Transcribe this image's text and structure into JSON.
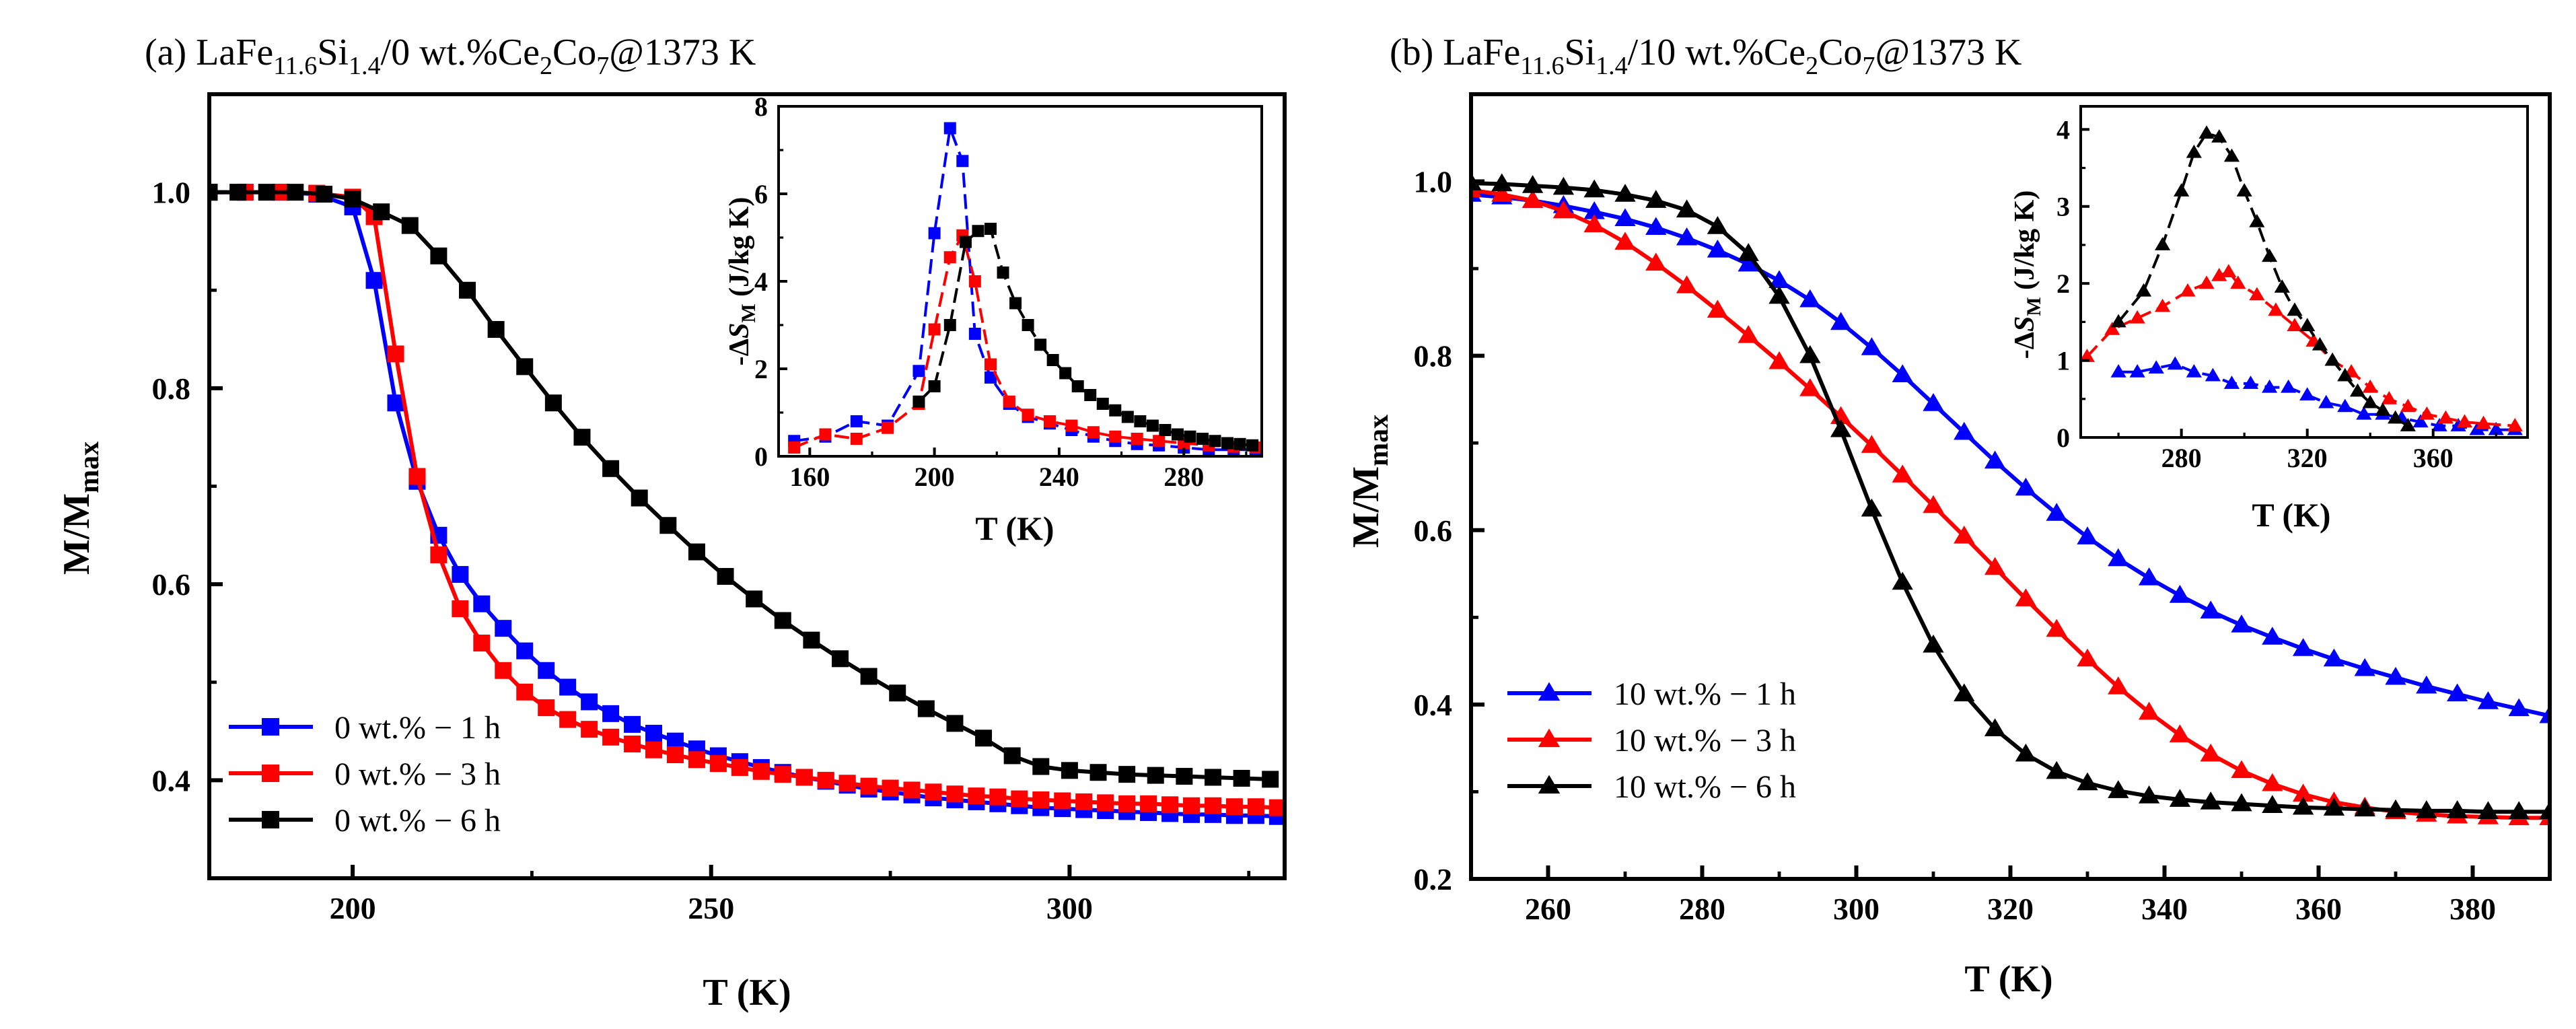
{
  "chart_data": [
    {
      "id": "a",
      "type": "line",
      "title": {
        "prefix": "(a) LaFe",
        "s1": "11.6",
        "m1": "Si",
        "s2": "1.4",
        "m2": "/0 wt.%Ce",
        "s3": "2",
        "m3": "Co",
        "s4": "7",
        "m4": "@1373 K"
      },
      "xlabel": "T (K)",
      "ylabel": {
        "main": "M/M",
        "sub": "max"
      },
      "xlim": [
        180,
        330
      ],
      "ylim": [
        0.3,
        1.1
      ],
      "xticks": [
        "200",
        "250",
        "300"
      ],
      "yticks": [
        "0.4",
        "0.6",
        "0.8",
        "1.0"
      ],
      "series": [
        {
          "name": "0 wt.% − 1 h",
          "color": "#0000ff",
          "marker": "square",
          "x": [
            180,
            185,
            190,
            195,
            200,
            203,
            206,
            209,
            212,
            215,
            218,
            221,
            224,
            227,
            230,
            233,
            236,
            239,
            242,
            245,
            248,
            251,
            254,
            257,
            260,
            263,
            266,
            269,
            272,
            275,
            278,
            281,
            284,
            287,
            290,
            293,
            296,
            299,
            302,
            305,
            308,
            311,
            314,
            317,
            320,
            323,
            326,
            329
          ],
          "y": [
            1.0,
            1.0,
            1.0,
            0.998,
            0.985,
            0.91,
            0.785,
            0.705,
            0.65,
            0.61,
            0.58,
            0.555,
            0.532,
            0.512,
            0.495,
            0.48,
            0.468,
            0.457,
            0.448,
            0.44,
            0.432,
            0.425,
            0.419,
            0.413,
            0.408,
            0.403,
            0.399,
            0.395,
            0.391,
            0.388,
            0.385,
            0.382,
            0.38,
            0.378,
            0.376,
            0.374,
            0.372,
            0.371,
            0.37,
            0.369,
            0.368,
            0.367,
            0.366,
            0.365,
            0.365,
            0.364,
            0.364,
            0.363
          ]
        },
        {
          "name": "0 wt.% − 3 h",
          "color": "#ff0000",
          "marker": "square",
          "x": [
            180,
            185,
            190,
            195,
            200,
            203,
            206,
            209,
            212,
            215,
            218,
            221,
            224,
            227,
            230,
            233,
            236,
            239,
            242,
            245,
            248,
            251,
            254,
            257,
            260,
            263,
            266,
            269,
            272,
            275,
            278,
            281,
            284,
            287,
            290,
            293,
            296,
            299,
            302,
            305,
            308,
            311,
            314,
            317,
            320,
            323,
            326,
            329
          ],
          "y": [
            1.0,
            1.0,
            1.0,
            0.999,
            0.995,
            0.975,
            0.835,
            0.71,
            0.63,
            0.575,
            0.54,
            0.512,
            0.49,
            0.474,
            0.462,
            0.452,
            0.444,
            0.437,
            0.431,
            0.426,
            0.421,
            0.417,
            0.413,
            0.409,
            0.406,
            0.403,
            0.4,
            0.397,
            0.394,
            0.392,
            0.39,
            0.388,
            0.386,
            0.384,
            0.383,
            0.381,
            0.38,
            0.379,
            0.378,
            0.377,
            0.376,
            0.376,
            0.375,
            0.374,
            0.374,
            0.373,
            0.373,
            0.372
          ]
        },
        {
          "name": "0 wt.% − 6 h",
          "color": "#000000",
          "marker": "square",
          "x": [
            180,
            184,
            188,
            192,
            196,
            200,
            204,
            208,
            212,
            216,
            220,
            224,
            228,
            232,
            236,
            240,
            244,
            248,
            252,
            256,
            260,
            264,
            268,
            272,
            276,
            280,
            284,
            288,
            292,
            296,
            300,
            304,
            308,
            312,
            316,
            320,
            324,
            328
          ],
          "y": [
            1.0,
            1.0,
            1.0,
            1.0,
            0.998,
            0.993,
            0.98,
            0.966,
            0.935,
            0.9,
            0.86,
            0.822,
            0.785,
            0.75,
            0.718,
            0.688,
            0.66,
            0.633,
            0.608,
            0.585,
            0.563,
            0.543,
            0.524,
            0.506,
            0.489,
            0.473,
            0.458,
            0.443,
            0.425,
            0.414,
            0.41,
            0.408,
            0.406,
            0.405,
            0.404,
            0.403,
            0.402,
            0.401
          ]
        }
      ],
      "legend_location": "lower-left",
      "inset": {
        "xlabel": "T (K)",
        "ylabel": {
          "pre": "-Δ",
          "ital": "S",
          "sub": "M",
          "post": " (J/kg K)"
        },
        "xlim": [
          150,
          305
        ],
        "ylim": [
          0,
          8
        ],
        "xticks": [
          "160",
          "200",
          "240",
          "280"
        ],
        "yticks": [
          "0",
          "2",
          "4",
          "6",
          "8"
        ],
        "series": [
          {
            "name": "1 h",
            "color": "#0000ff",
            "marker": "square",
            "x": [
              155,
              165,
              175,
              185,
              195,
              200,
              205,
              209,
              213,
              218,
              224,
              230,
              237,
              244,
              251,
              258,
              265,
              272,
              280,
              288,
              296,
              303
            ],
            "y": [
              0.35,
              0.45,
              0.8,
              0.7,
              1.95,
              5.1,
              7.5,
              6.75,
              2.8,
              1.8,
              1.2,
              0.9,
              0.75,
              0.6,
              0.45,
              0.35,
              0.28,
              0.25,
              0.2,
              0.15,
              0.15,
              0.15
            ]
          },
          {
            "name": "3 h",
            "color": "#ff0000",
            "marker": "square",
            "x": [
              155,
              165,
              175,
              185,
              195,
              200,
              205,
              209,
              213,
              218,
              224,
              230,
              237,
              244,
              251,
              258,
              265,
              272,
              280,
              288,
              296,
              303
            ],
            "y": [
              0.2,
              0.5,
              0.4,
              0.65,
              1.2,
              2.9,
              4.55,
              5.05,
              4.0,
              2.1,
              1.25,
              0.95,
              0.8,
              0.7,
              0.55,
              0.45,
              0.4,
              0.35,
              0.3,
              0.25,
              0.22,
              0.2
            ]
          },
          {
            "name": "6 h",
            "color": "#000000",
            "marker": "square",
            "x": [
              195,
              200,
              205,
              210,
              214,
              218,
              222,
              226,
              230,
              234,
              238,
              242,
              246,
              250,
              254,
              258,
              262,
              266,
              270,
              274,
              278,
              282,
              286,
              290,
              294,
              298,
              302
            ],
            "y": [
              1.25,
              1.6,
              3.0,
              4.9,
              5.15,
              5.2,
              4.2,
              3.5,
              3.0,
              2.55,
              2.2,
              1.9,
              1.6,
              1.4,
              1.2,
              1.05,
              0.9,
              0.8,
              0.7,
              0.6,
              0.5,
              0.45,
              0.4,
              0.35,
              0.3,
              0.28,
              0.25
            ]
          }
        ]
      }
    },
    {
      "id": "b",
      "type": "line",
      "title": {
        "prefix": "(b) LaFe",
        "s1": "11.6",
        "m1": "Si",
        "s2": "1.4",
        "m2": "/10 wt.%Ce",
        "s3": "2",
        "m3": "Co",
        "s4": "7",
        "m4": "@1373 K"
      },
      "xlabel": "T (K)",
      "ylabel": {
        "main": "M/M",
        "sub": "max"
      },
      "xlim": [
        250,
        390
      ],
      "ylim": [
        0.2,
        1.1
      ],
      "xticks": [
        "260",
        "280",
        "300",
        "320",
        "340",
        "360",
        "380"
      ],
      "yticks": [
        "0.2",
        "0.4",
        "0.6",
        "0.8",
        "1.0"
      ],
      "series": [
        {
          "name": "10 wt.% − 1 h",
          "color": "#0000ff",
          "marker": "triangle",
          "x": [
            250,
            254,
            258,
            262,
            266,
            270,
            274,
            278,
            282,
            286,
            290,
            294,
            298,
            302,
            306,
            310,
            314,
            318,
            322,
            326,
            330,
            334,
            338,
            342,
            346,
            350,
            354,
            358,
            362,
            366,
            370,
            374,
            378,
            382,
            386,
            390
          ],
          "y": [
            0.985,
            0.982,
            0.978,
            0.972,
            0.965,
            0.957,
            0.947,
            0.935,
            0.921,
            0.905,
            0.886,
            0.864,
            0.838,
            0.809,
            0.778,
            0.745,
            0.712,
            0.679,
            0.648,
            0.619,
            0.592,
            0.567,
            0.545,
            0.525,
            0.507,
            0.491,
            0.477,
            0.464,
            0.452,
            0.441,
            0.431,
            0.421,
            0.412,
            0.403,
            0.395,
            0.387
          ]
        },
        {
          "name": "10 wt.% − 3 h",
          "color": "#ff0000",
          "marker": "triangle",
          "x": [
            250,
            254,
            258,
            262,
            266,
            270,
            274,
            278,
            282,
            286,
            290,
            294,
            298,
            302,
            306,
            310,
            314,
            318,
            322,
            326,
            330,
            334,
            338,
            342,
            346,
            350,
            354,
            358,
            362,
            366,
            370,
            374,
            378,
            382,
            386,
            390
          ],
          "y": [
            0.99,
            0.985,
            0.978,
            0.966,
            0.95,
            0.93,
            0.906,
            0.88,
            0.852,
            0.823,
            0.793,
            0.762,
            0.73,
            0.697,
            0.663,
            0.628,
            0.593,
            0.557,
            0.521,
            0.486,
            0.452,
            0.42,
            0.391,
            0.365,
            0.343,
            0.324,
            0.309,
            0.297,
            0.288,
            0.282,
            0.277,
            0.274,
            0.272,
            0.271,
            0.27,
            0.27
          ]
        },
        {
          "name": "10 wt.% − 6 h",
          "color": "#000000",
          "marker": "triangle",
          "x": [
            250,
            254,
            258,
            262,
            266,
            270,
            274,
            278,
            282,
            286,
            290,
            294,
            298,
            302,
            306,
            310,
            314,
            318,
            322,
            326,
            330,
            334,
            338,
            342,
            346,
            350,
            354,
            358,
            362,
            366,
            370,
            374,
            378,
            382,
            386,
            390
          ],
          "y": [
            0.998,
            0.997,
            0.995,
            0.993,
            0.99,
            0.985,
            0.978,
            0.967,
            0.948,
            0.917,
            0.868,
            0.8,
            0.715,
            0.624,
            0.54,
            0.468,
            0.412,
            0.372,
            0.343,
            0.323,
            0.31,
            0.301,
            0.295,
            0.291,
            0.288,
            0.286,
            0.284,
            0.282,
            0.281,
            0.28,
            0.279,
            0.278,
            0.278,
            0.277,
            0.277,
            0.277
          ]
        }
      ],
      "legend_location": "lower-left",
      "inset": {
        "xlabel": "T (K)",
        "ylabel": {
          "pre": "-Δ",
          "ital": "S",
          "sub": "M",
          "post": " (J/kg K)"
        },
        "xlim": [
          248,
          390
        ],
        "ylim": [
          0,
          4.3
        ],
        "xticks": [
          "280",
          "320",
          "360"
        ],
        "yticks": [
          "0",
          "1",
          "2",
          "3",
          "4"
        ],
        "series": [
          {
            "name": "1 h",
            "color": "#0000ff",
            "marker": "triangle",
            "x": [
              260,
              266,
              272,
              278,
              284,
              290,
              296,
              302,
              308,
              314,
              320,
              326,
              332,
              338,
              344,
              350,
              356,
              362,
              368,
              374,
              380,
              386
            ],
            "y": [
              0.85,
              0.85,
              0.9,
              0.95,
              0.85,
              0.8,
              0.7,
              0.7,
              0.65,
              0.65,
              0.55,
              0.45,
              0.4,
              0.3,
              0.3,
              0.25,
              0.2,
              0.15,
              0.15,
              0.1,
              0.1,
              0.1
            ]
          },
          {
            "name": "3 h",
            "color": "#ff0000",
            "marker": "triangle",
            "x": [
              250,
              258,
              266,
              274,
              282,
              288,
              292,
              295,
              298,
              304,
              310,
              316,
              322,
              328,
              334,
              340,
              346,
              352,
              358,
              364,
              370,
              376,
              386
            ],
            "y": [
              1.05,
              1.4,
              1.55,
              1.7,
              1.9,
              2.0,
              2.1,
              2.15,
              2.0,
              1.85,
              1.65,
              1.45,
              1.25,
              1.0,
              0.85,
              0.65,
              0.5,
              0.4,
              0.3,
              0.25,
              0.2,
              0.18,
              0.15
            ]
          },
          {
            "name": "6 h",
            "color": "#000000",
            "marker": "triangle",
            "x": [
              260,
              268,
              274,
              280,
              284,
              288,
              292,
              296,
              300,
              304,
              308,
              312,
              316,
              320,
              324,
              328,
              332,
              336,
              340,
              344,
              348,
              352
            ],
            "y": [
              1.5,
              1.9,
              2.5,
              3.2,
              3.7,
              3.95,
              3.9,
              3.65,
              3.2,
              2.8,
              2.35,
              1.95,
              1.65,
              1.45,
              1.2,
              1.0,
              0.8,
              0.6,
              0.45,
              0.35,
              0.25,
              0.15
            ]
          }
        ]
      }
    }
  ]
}
